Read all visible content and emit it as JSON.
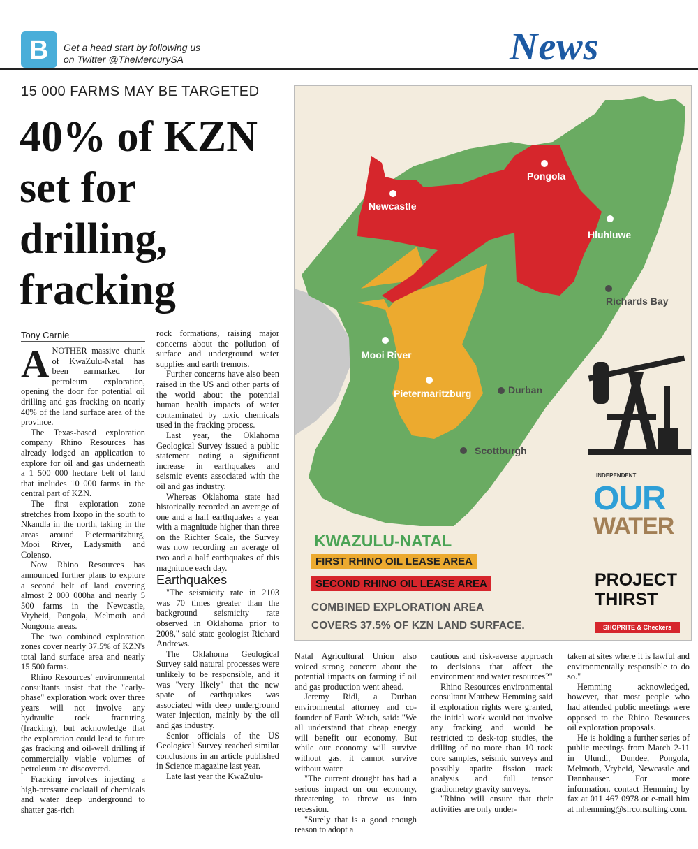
{
  "header": {
    "twitter_text_line1": "Get a head start by following us",
    "twitter_text_line2": "on Twitter @TheMercurySA",
    "section": "News"
  },
  "article": {
    "kicker": "15 000 FARMS MAY BE TARGETED",
    "headline_l1": "40% of KZN",
    "headline_l2": "set for",
    "headline_l3": "drilling,",
    "headline_l4": "fracking",
    "byline": "Tony Carnie",
    "dropcap": "A",
    "col1": [
      "NOTHER massive chunk of KwaZulu-Natal has been earmarked for petroleum exploration, opening the door for potential oil drilling and gas fracking on nearly 40% of the land surface area of the province.",
      "The Texas-based exploration company Rhino Resources has already lodged an application to explore for oil and gas underneath a 1 500 000 hectare belt of land that includes 10 000 farms in the central part of KZN.",
      "The first exploration zone stretches from Ixopo in the south to Nkandla in the north, taking in the areas around Pietermaritzburg, Mooi River, Ladysmith and Colenso.",
      "Now Rhino Resources has announced further plans to explore a second belt of land covering almost 2 000 000ha and nearly 5 500 farms in the Newcastle, Vryheid, Pongola, Melmoth and Nongoma areas.",
      "The two combined exploration zones cover nearly 37.5% of KZN's total land surface area and nearly 15 500 farms.",
      "Rhino Resources' environmental consultants insist that the \"early-phase\" exploration work over three years will not involve any hydraulic rock fracturing (fracking), but acknowledge that the exploration could lead to future gas fracking and oil-well drilling if commercially viable volumes of petroleum are discovered.",
      "Fracking involves injecting a high-pressure cocktail of chemicals and water deep underground to shatter gas-rich"
    ],
    "col2a": [
      "rock formations, raising major concerns about the pollution of surface and underground water supplies and earth tremors.",
      "Further concerns have also been raised in the US and other parts of the world about the potential human health impacts of water contaminated by toxic chemicals used in the fracking process.",
      "Last year, the Oklahoma Geological Survey issued a public statement noting a significant increase in earthquakes and seismic events associated with the oil and gas industry.",
      "Whereas Oklahoma state had historically recorded an average of one and a half earthquakes a year with a magnitude higher than three on the Richter Scale, the Survey was now recording an average of two and a half earthquakes of this magnitude each day."
    ],
    "subhead": "Earthquakes",
    "col2b": [
      "\"The seismicity rate in 2103 was 70 times greater than the background seismicity rate observed in Oklahoma prior to 2008,\" said state geologist Richard Andrews.",
      "The Oklahoma Geological Survey said natural processes were unlikely to be responsible, and it was \"very likely\" that the new spate of earthquakes was associated with deep underground water injection, mainly by the oil and gas industry.",
      "Senior officials of the US Geological Survey reached similar conclusions in an article published in Science magazine last year.",
      "Late last year the KwaZulu-"
    ],
    "col3": [
      "Natal Agricultural Union also voiced strong concern about the potential impacts on farming if oil and gas production went ahead.",
      "Jeremy Ridl, a Durban environmental attorney and co-founder of Earth Watch, said: \"We all understand that cheap energy will benefit our economy. But while our economy will survive without gas, it cannot survive without water.",
      "\"The current drought has had a serious impact on our economy, threatening to throw us into recession.",
      "\"Surely that is a good enough reason to adopt a"
    ],
    "col4": [
      "cautious and risk-averse approach to decisions that affect the environment and water resources?\"",
      "Rhino Resources environmental consultant Matthew Hemming said if exploration rights were granted, the initial work would not involve any fracking and would be restricted to desk-top studies, the drilling of no more than 10 rock core samples, seismic surveys and possibly apatite fission track analysis and full tensor gradiometry gravity surveys.",
      "\"Rhino will ensure that their activities are only under-"
    ],
    "col5": [
      "taken at sites where it is lawful and environmentally responsible to do so.\"",
      "Hemming acknowledged, however, that most people who had attended public meetings were opposed to the Rhino Resources oil exploration proposals.",
      "He is holding a further series of public meetings from March 2-11 in Ulundi, Dundee, Pongola, Melmoth, Vryheid, Newcastle and Dannhauser. For more information, contact Hemming by fax at 011 467 0978 or e-mail him at mhemming@slrconsulting.com."
    ]
  },
  "map": {
    "cities": {
      "newcastle": "Newcastle",
      "pongola": "Pongola",
      "hluhluwe": "Hluhluwe",
      "richards_bay": "Richards Bay",
      "mooi_river": "Mooi River",
      "pietermaritzburg": "Pietermaritzburg",
      "durban": "Durban",
      "scottburgh": "Scottburgh"
    },
    "legend_title": "KWAZULU-NATAL",
    "legend_first": "FIRST RHINO OIL LEASE AREA",
    "legend_second": "SECOND RHINO OIL LEASE AREA",
    "legend_note_l1": "COMBINED EXPLORATION AREA",
    "legend_note_l2": "COVERS 37.5% OF KZN LAND SURFACE.",
    "colors": {
      "province": "#6aab62",
      "first_area": "#ecaa2f",
      "second_area": "#d6262c",
      "outside": "#c9c9c9"
    }
  },
  "campaign": {
    "independent": "INDEPENDENT",
    "our": "OUR",
    "water": "WATER",
    "project_l1": "PROJECT",
    "project_l2": "THIRST",
    "sponsor": "SHOPRITE & Checkers"
  }
}
